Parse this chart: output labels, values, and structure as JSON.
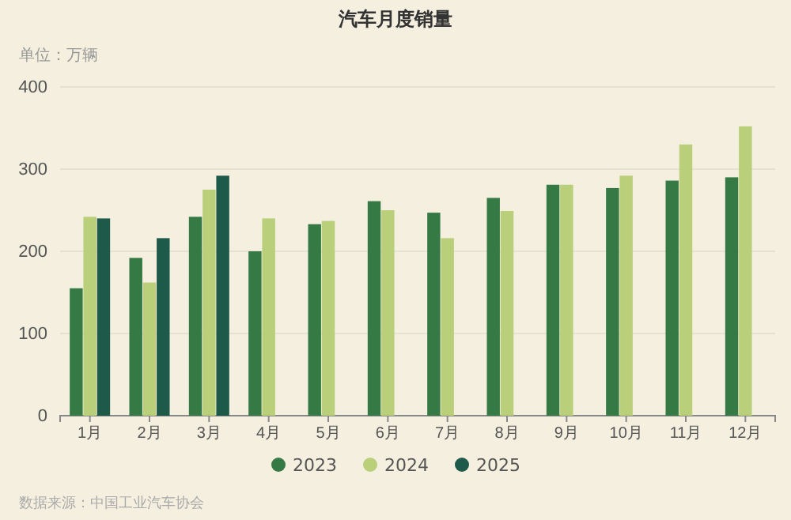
{
  "chart_data": {
    "type": "bar",
    "title": "汽车月度销量",
    "ylabel": "单位：万辆",
    "categories": [
      "1月",
      "2月",
      "3月",
      "4月",
      "5月",
      "6月",
      "7月",
      "8月",
      "9月",
      "10月",
      "11月",
      "12月"
    ],
    "series": [
      {
        "name": "2023",
        "color": "#357a45",
        "values": [
          155,
          192,
          242,
          200,
          233,
          261,
          247,
          265,
          281,
          277,
          286,
          290
        ]
      },
      {
        "name": "2024",
        "color": "#b9cf7a",
        "values": [
          242,
          162,
          275,
          240,
          237,
          250,
          216,
          249,
          281,
          292,
          330,
          352
        ]
      },
      {
        "name": "2025",
        "color": "#1e5a4a",
        "values": [
          240,
          216,
          292,
          null,
          null,
          null,
          null,
          null,
          null,
          null,
          null,
          null
        ]
      }
    ],
    "ylim": [
      0,
      400
    ],
    "yticks": [
      0,
      100,
      200,
      300,
      400
    ],
    "grid": "y",
    "legend": "bottom",
    "annotations": [
      "数据来源：中国工业汽车协会"
    ]
  }
}
